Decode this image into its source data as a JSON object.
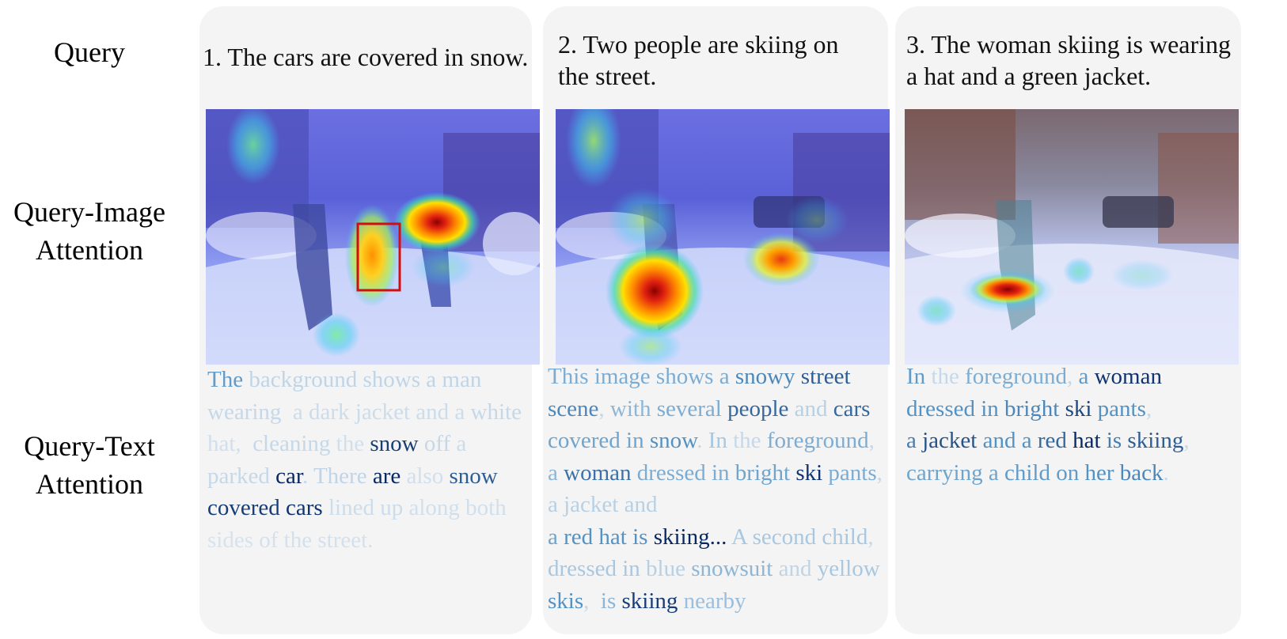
{
  "row_labels": {
    "query": [
      "Query"
    ],
    "query_image": [
      "Query-Image",
      "Attention"
    ],
    "query_text": [
      "Query-Text",
      "Attention"
    ]
  },
  "panels": [
    {
      "query": "1. The cars are covered in snow.",
      "image_alt": "snowy street with skiers, attention heatmap",
      "tokens": [
        {
          "t": "The ",
          "w": 0.45
        },
        {
          "t": "background ",
          "w": 0.12
        },
        {
          "t": "shows ",
          "w": 0.12
        },
        {
          "t": "a ",
          "w": 0.12
        },
        {
          "t": "man ",
          "w": 0.12
        },
        {
          "t": "wearing  ",
          "w": 0.1
        },
        {
          "t": "a ",
          "w": 0.08
        },
        {
          "t": "dark ",
          "w": 0.08
        },
        {
          "t": "jacket ",
          "w": 0.08
        },
        {
          "t": "and ",
          "w": 0.08
        },
        {
          "t": "a ",
          "w": 0.08
        },
        {
          "t": "white ",
          "w": 0.1
        },
        {
          "t": "hat,  ",
          "w": 0.06
        },
        {
          "t": "cleaning ",
          "w": 0.1
        },
        {
          "t": "the ",
          "w": 0.06
        },
        {
          "t": "snow ",
          "w": 0.9
        },
        {
          "t": "off ",
          "w": 0.1
        },
        {
          "t": "a ",
          "w": 0.08
        },
        {
          "t": "parked ",
          "w": 0.1
        },
        {
          "t": "car",
          "w": 1.0
        },
        {
          "t": ". ",
          "w": 0.1
        },
        {
          "t": "There ",
          "w": 0.12
        },
        {
          "t": "are ",
          "w": 1.0
        },
        {
          "t": "also ",
          "w": 0.06
        },
        {
          "t": "snow ",
          "w": 0.75
        },
        {
          "t": "covered ",
          "w": 0.9
        },
        {
          "t": "cars ",
          "w": 0.95
        },
        {
          "t": "lined ",
          "w": 0.08
        },
        {
          "t": "up ",
          "w": 0.08
        },
        {
          "t": "along ",
          "w": 0.06
        },
        {
          "t": "both ",
          "w": 0.06
        },
        {
          "t": "sides ",
          "w": 0.04
        },
        {
          "t": "of ",
          "w": 0.05
        },
        {
          "t": "the ",
          "w": 0.05
        },
        {
          "t": "street.",
          "w": 0.05
        }
      ]
    },
    {
      "query": "2. Two people are skiing on the street.",
      "image_alt": "snowy street with skiers, attention heatmap",
      "tokens": [
        {
          "t": "This ",
          "w": 0.35
        },
        {
          "t": "image ",
          "w": 0.35
        },
        {
          "t": "shows ",
          "w": 0.35
        },
        {
          "t": "a ",
          "w": 0.35
        },
        {
          "t": "snowy ",
          "w": 0.55
        },
        {
          "t": "street ",
          "w": 0.75
        },
        {
          "t": "scene",
          "w": 0.55
        },
        {
          "t": ", ",
          "w": 0.1
        },
        {
          "t": "with ",
          "w": 0.3
        },
        {
          "t": "several ",
          "w": 0.35
        },
        {
          "t": "people ",
          "w": 0.7
        },
        {
          "t": "and ",
          "w": 0.15
        },
        {
          "t": "cars ",
          "w": 0.7
        },
        {
          "t": "covered ",
          "w": 0.4
        },
        {
          "t": "in ",
          "w": 0.4
        },
        {
          "t": "snow",
          "w": 0.5
        },
        {
          "t": ". ",
          "w": 0.1
        },
        {
          "t": "In ",
          "w": 0.2
        },
        {
          "t": "the ",
          "w": 0.1
        },
        {
          "t": "foreground",
          "w": 0.35
        },
        {
          "t": ", ",
          "w": 0.1
        },
        {
          "t": "a ",
          "w": 0.3
        },
        {
          "t": "woman ",
          "w": 0.65
        },
        {
          "t": "dressed ",
          "w": 0.35
        },
        {
          "t": "in ",
          "w": 0.35
        },
        {
          "t": "bright ",
          "w": 0.4
        },
        {
          "t": "ski ",
          "w": 0.95
        },
        {
          "t": "pants",
          "w": 0.35
        },
        {
          "t": ", ",
          "w": 0.1
        },
        {
          "t": "a ",
          "w": 0.15
        },
        {
          "t": "jacket ",
          "w": 0.15
        },
        {
          "t": "and",
          "w": 0.15
        },
        {
          "t": "\n",
          "w": 0
        },
        {
          "t": "a ",
          "w": 0.4
        },
        {
          "t": "red ",
          "w": 0.5
        },
        {
          "t": "hat ",
          "w": 0.5
        },
        {
          "t": "is ",
          "w": 0.5
        },
        {
          "t": "skiing...",
          "w": 1.0
        },
        {
          "t": " ",
          "w": 0
        },
        {
          "t": "A ",
          "w": 0.2
        },
        {
          "t": "second ",
          "w": 0.2
        },
        {
          "t": "child",
          "w": 0.2
        },
        {
          "t": ", ",
          "w": 0.1
        },
        {
          "t": "dressed ",
          "w": 0.2
        },
        {
          "t": "in ",
          "w": 0.2
        },
        {
          "t": "blue ",
          "w": 0.15
        },
        {
          "t": "snowsuit ",
          "w": 0.3
        },
        {
          "t": "and ",
          "w": 0.12
        },
        {
          "t": "yellow ",
          "w": 0.2
        },
        {
          "t": "skis",
          "w": 0.5
        },
        {
          "t": ",  ",
          "w": 0.1
        },
        {
          "t": "is ",
          "w": 0.3
        },
        {
          "t": "skiing ",
          "w": 0.9
        },
        {
          "t": "nearby",
          "w": 0.25
        }
      ]
    },
    {
      "query": "3. The woman skiing is wearing a hat and a green jacket.",
      "image_alt": "snowy street with skiers, attention heatmap",
      "tokens": [
        {
          "t": "In ",
          "w": 0.45
        },
        {
          "t": "the ",
          "w": 0.1
        },
        {
          "t": "foreground",
          "w": 0.35
        },
        {
          "t": ", ",
          "w": 0.1
        },
        {
          "t": "a ",
          "w": 0.45
        },
        {
          "t": "woman",
          "w": 0.95
        },
        {
          "t": "\n",
          "w": 0
        },
        {
          "t": "dressed ",
          "w": 0.5
        },
        {
          "t": "in ",
          "w": 0.5
        },
        {
          "t": "bright ",
          "w": 0.55
        },
        {
          "t": "ski ",
          "w": 0.85
        },
        {
          "t": "pants",
          "w": 0.5
        },
        {
          "t": ",",
          "w": 0.1
        },
        {
          "t": "\n",
          "w": 0
        },
        {
          "t": "a ",
          "w": 0.6
        },
        {
          "t": "jacket ",
          "w": 0.8
        },
        {
          "t": "and ",
          "w": 0.5
        },
        {
          "t": "a ",
          "w": 0.5
        },
        {
          "t": "red ",
          "w": 0.7
        },
        {
          "t": "hat ",
          "w": 1.0
        },
        {
          "t": "is ",
          "w": 0.6
        },
        {
          "t": "skiing",
          "w": 0.75
        },
        {
          "t": ",",
          "w": 0.1
        },
        {
          "t": "\n",
          "w": 0
        },
        {
          "t": "carrying ",
          "w": 0.4
        },
        {
          "t": "a ",
          "w": 0.4
        },
        {
          "t": "child ",
          "w": 0.45
        },
        {
          "t": "on ",
          "w": 0.45
        },
        {
          "t": "her ",
          "w": 0.5
        },
        {
          "t": "back",
          "w": 0.55
        },
        {
          "t": ".",
          "w": 0.1
        }
      ]
    }
  ]
}
